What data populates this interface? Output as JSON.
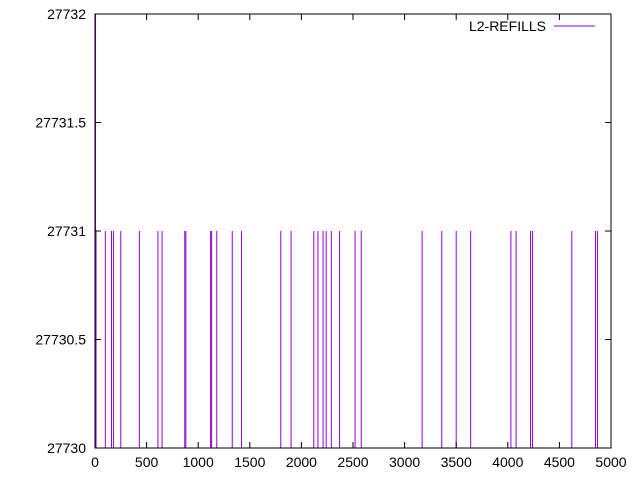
{
  "chart_data": {
    "type": "line",
    "title": "",
    "xlabel": "",
    "ylabel": "",
    "xlim": [
      0,
      5000
    ],
    "ylim": [
      27730,
      27732
    ],
    "xticks": [
      "0",
      "500",
      "1000",
      "1500",
      "2000",
      "2500",
      "3000",
      "3500",
      "4000",
      "4500",
      "5000"
    ],
    "yticks": [
      "27730",
      "27730.5",
      "27731",
      "27731.5",
      "27732"
    ],
    "grid": false,
    "legend_position": "top-right",
    "series": [
      {
        "name": "L2-REFILLS",
        "color": "#9400d3",
        "baseline": 27730,
        "spikes": [
          [
            5,
            27732
          ],
          [
            10,
            27731
          ],
          [
            100,
            27731
          ],
          [
            160,
            27731
          ],
          [
            180,
            27731
          ],
          [
            250,
            27731
          ],
          [
            430,
            27731
          ],
          [
            610,
            27731
          ],
          [
            650,
            27731
          ],
          [
            870,
            27731
          ],
          [
            880,
            27731
          ],
          [
            1120,
            27731
          ],
          [
            1130,
            27731
          ],
          [
            1180,
            27731
          ],
          [
            1330,
            27731
          ],
          [
            1420,
            27731
          ],
          [
            1800,
            27731
          ],
          [
            1900,
            27731
          ],
          [
            2120,
            27731
          ],
          [
            2160,
            27731
          ],
          [
            2210,
            27731
          ],
          [
            2240,
            27731
          ],
          [
            2290,
            27731
          ],
          [
            2370,
            27731
          ],
          [
            2520,
            27731
          ],
          [
            2580,
            27731
          ],
          [
            3170,
            27731
          ],
          [
            3360,
            27731
          ],
          [
            3500,
            27731
          ],
          [
            3640,
            27731
          ],
          [
            4030,
            27731
          ],
          [
            4080,
            27731
          ],
          [
            4220,
            27731
          ],
          [
            4240,
            27731
          ],
          [
            4620,
            27731
          ],
          [
            4850,
            27731
          ],
          [
            4870,
            27731
          ]
        ]
      }
    ]
  }
}
